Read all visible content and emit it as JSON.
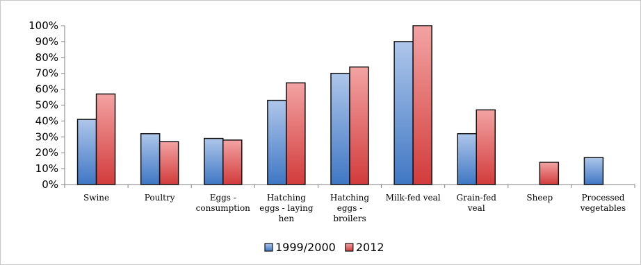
{
  "chart_data": {
    "type": "bar",
    "title": "",
    "xlabel": "",
    "ylabel": "",
    "ylim": [
      0,
      100
    ],
    "y_ticks": [
      "0%",
      "10%",
      "20%",
      "30%",
      "40%",
      "50%",
      "60%",
      "70%",
      "80%",
      "90%",
      "100%"
    ],
    "grid": false,
    "legend_position": "bottom",
    "categories": [
      [
        "Swine"
      ],
      [
        "Poultry"
      ],
      [
        "Eggs -",
        "consumption"
      ],
      [
        "Hatching",
        "eggs - laying",
        "hen"
      ],
      [
        "Hatching",
        "eggs -",
        "broilers"
      ],
      [
        "Milk-fed veal"
      ],
      [
        "Grain-fed",
        "veal"
      ],
      [
        "Sheep"
      ],
      [
        "Processed",
        "vegetables"
      ]
    ],
    "series": [
      {
        "name": "1999/2000",
        "color_top": "#aec6ea",
        "color_bottom": "#3f77c4",
        "values": [
          41,
          32,
          29,
          53,
          70,
          90,
          32,
          null,
          17
        ]
      },
      {
        "name": "2012",
        "color_top": "#f3a3a3",
        "color_bottom": "#d23b3b",
        "values": [
          57,
          27,
          28,
          64,
          74,
          100,
          47,
          14,
          null
        ]
      }
    ]
  }
}
